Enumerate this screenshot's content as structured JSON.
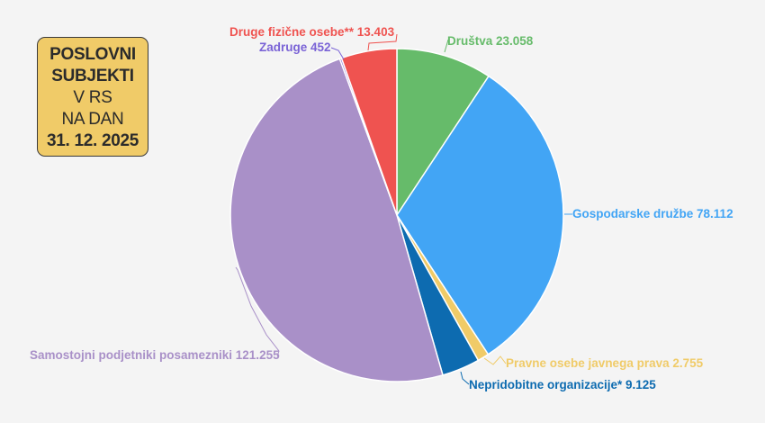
{
  "title_box": {
    "lines": [
      "POSLOVNI",
      "SUBJEKTI",
      "V RS",
      "NA DAN",
      "31. 12. 2025"
    ]
  },
  "chart_data": {
    "type": "pie",
    "title": "POSLOVNI SUBJEKTI V RS NA DAN 31. 12. 2025",
    "start_angle": "12 o'clock, clockwise",
    "slices": [
      {
        "label": "Društva",
        "value": 23058,
        "display": "Društva 23.058",
        "color": "#66bb6a"
      },
      {
        "label": "Gospodarske družbe",
        "value": 78112,
        "display": "Gospodarske družbe 78.112",
        "color": "#42a5f5"
      },
      {
        "label": "Pravne osebe javnega prava",
        "value": 2755,
        "display": "Pravne osebe javnega prava 2.755",
        "color": "#f0cb68"
      },
      {
        "label": "Nepridobitne organizacije*",
        "value": 9125,
        "display": "Nepridobitne organizacije* 9.125",
        "color": "#0d6bb0"
      },
      {
        "label": "Samostojni podjetniki posamezniki",
        "value": 121255,
        "display": "Samostojni podjetniki posamezniki 121.255",
        "color": "#a990c8"
      },
      {
        "label": "Zadruge",
        "value": 452,
        "display": "Zadruge 452",
        "color": "#7a63d6"
      },
      {
        "label": "Druge fizične osebe**",
        "value": 13403,
        "display": "Druge fizične osebe** 13.403",
        "color": "#ef5350"
      }
    ],
    "label_colors": {
      "Društva": "#66bb6a",
      "Gospodarske družbe": "#42a5f5",
      "Pravne osebe javnega prava": "#f0cb68",
      "Nepridobitne organizacije*": "#0d6bb0",
      "Samostojni podjetniki posamezniki": "#a990c8",
      "Zadruge": "#7a63d6",
      "Druge fizične osebe**": "#ef5350"
    },
    "legend": "none (outside callout labels)"
  },
  "labels": {
    "drustva": "Društva 23.058",
    "gospodarske": "Gospodarske družbe 78.112",
    "pravne": "Pravne osebe javnega prava 2.755",
    "nepridobitne": "Nepridobitne organizacije* 9.125",
    "samostojni": "Samostojni podjetniki posamezniki 121.255",
    "zadruge": "Zadruge 452",
    "druge": "Druge fizične osebe** 13.403"
  }
}
